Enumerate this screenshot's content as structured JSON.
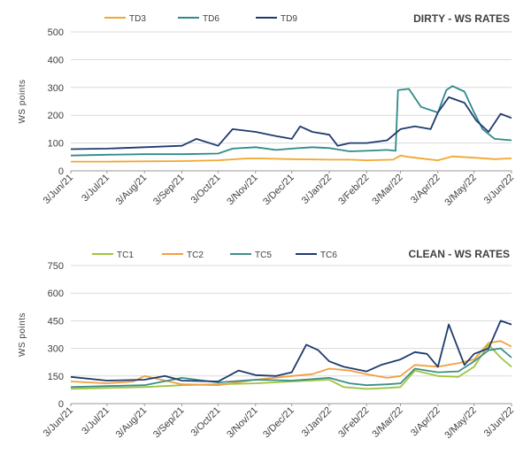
{
  "chart_data": [
    {
      "type": "line",
      "title": "DIRTY - WS RATES",
      "ylabel": "WS points",
      "xlabel": "",
      "ylim": [
        0,
        500
      ],
      "yticks": [
        0,
        100,
        200,
        300,
        400,
        500
      ],
      "xlim": [
        "2021-06-03",
        "2022-06-03"
      ],
      "xtick_labels": [
        "3/Jun/21",
        "3/Jul/21",
        "3/Aug/21",
        "3/Sep/21",
        "3/Oct/21",
        "3/Nov/21",
        "3/Dec/21",
        "3/Jan/22",
        "3/Feb/22",
        "3/Mar/22",
        "3/Apr/22",
        "3/May/22",
        "3/Jun/22"
      ],
      "grid": "horizontal",
      "legend": "top-left",
      "series": [
        {
          "name": "TD3",
          "color": "#f0a830",
          "x": [
            "2021-06-03",
            "2021-07-03",
            "2021-08-03",
            "2021-09-03",
            "2021-10-03",
            "2021-10-25",
            "2021-11-03",
            "2021-12-03",
            "2022-01-03",
            "2022-01-20",
            "2022-02-03",
            "2022-02-25",
            "2022-03-03",
            "2022-03-10",
            "2022-03-25",
            "2022-04-03",
            "2022-04-15",
            "2022-05-03",
            "2022-05-20",
            "2022-06-03"
          ],
          "values": [
            33,
            33,
            34,
            35,
            38,
            44,
            45,
            42,
            40,
            40,
            38,
            40,
            55,
            50,
            42,
            38,
            52,
            47,
            42,
            45
          ]
        },
        {
          "name": "TD6",
          "color": "#2e8b87",
          "x": [
            "2021-06-03",
            "2021-07-03",
            "2021-08-03",
            "2021-09-03",
            "2021-10-03",
            "2021-10-15",
            "2021-11-03",
            "2021-11-20",
            "2021-12-03",
            "2021-12-20",
            "2022-01-03",
            "2022-01-20",
            "2022-02-03",
            "2022-02-20",
            "2022-02-27",
            "2022-03-01",
            "2022-03-10",
            "2022-03-20",
            "2022-04-03",
            "2022-04-10",
            "2022-04-15",
            "2022-04-25",
            "2022-05-03",
            "2022-05-10",
            "2022-05-20",
            "2022-06-03"
          ],
          "values": [
            55,
            58,
            60,
            60,
            62,
            80,
            85,
            75,
            80,
            85,
            82,
            70,
            72,
            75,
            72,
            290,
            295,
            230,
            210,
            290,
            305,
            285,
            210,
            150,
            115,
            110
          ]
        },
        {
          "name": "TD9",
          "color": "#1f3b6e",
          "x": [
            "2021-06-03",
            "2021-07-03",
            "2021-08-03",
            "2021-09-03",
            "2021-09-15",
            "2021-10-03",
            "2021-10-15",
            "2021-11-03",
            "2021-11-20",
            "2021-12-03",
            "2021-12-10",
            "2021-12-20",
            "2022-01-03",
            "2022-01-10",
            "2022-01-20",
            "2022-02-03",
            "2022-02-20",
            "2022-03-03",
            "2022-03-15",
            "2022-03-28",
            "2022-04-03",
            "2022-04-12",
            "2022-04-25",
            "2022-05-05",
            "2022-05-15",
            "2022-05-25",
            "2022-06-03"
          ],
          "values": [
            78,
            80,
            85,
            90,
            115,
            90,
            150,
            140,
            125,
            115,
            160,
            140,
            130,
            90,
            100,
            100,
            110,
            150,
            160,
            150,
            210,
            265,
            245,
            180,
            140,
            205,
            190
          ]
        }
      ]
    },
    {
      "type": "line",
      "title": "CLEAN - WS RATES",
      "ylabel": "WS points",
      "xlabel": "",
      "ylim": [
        0,
        750
      ],
      "yticks": [
        0,
        150,
        300,
        450,
        600,
        750
      ],
      "xlim": [
        "2021-06-03",
        "2022-06-03"
      ],
      "xtick_labels": [
        "3/Jun/21",
        "3/Jul/21",
        "3/Aug/21",
        "3/Sep/21",
        "3/Oct/21",
        "3/Nov/21",
        "3/Dec/21",
        "3/Jan/22",
        "3/Feb/22",
        "3/Mar/22",
        "3/Apr/22",
        "3/May/22",
        "3/Jun/22"
      ],
      "grid": "horizontal",
      "legend": "top-left",
      "series": [
        {
          "name": "TC1",
          "color": "#9dc53f",
          "x": [
            "2021-06-03",
            "2021-07-03",
            "2021-08-03",
            "2021-09-03",
            "2021-10-03",
            "2021-11-03",
            "2021-12-03",
            "2022-01-03",
            "2022-01-15",
            "2022-02-03",
            "2022-02-20",
            "2022-03-03",
            "2022-03-15",
            "2022-04-03",
            "2022-04-20",
            "2022-05-03",
            "2022-05-15",
            "2022-05-25",
            "2022-06-03"
          ],
          "values": [
            80,
            85,
            90,
            100,
            105,
            110,
            120,
            130,
            90,
            80,
            85,
            90,
            180,
            150,
            145,
            200,
            320,
            250,
            200
          ]
        },
        {
          "name": "TC2",
          "color": "#f0a040",
          "x": [
            "2021-06-03",
            "2021-07-03",
            "2021-07-25",
            "2021-08-03",
            "2021-09-03",
            "2021-10-03",
            "2021-11-03",
            "2021-12-03",
            "2021-12-20",
            "2022-01-03",
            "2022-01-20",
            "2022-02-03",
            "2022-02-20",
            "2022-03-03",
            "2022-03-15",
            "2022-04-03",
            "2022-04-20",
            "2022-05-03",
            "2022-05-15",
            "2022-05-25",
            "2022-06-03"
          ],
          "values": [
            120,
            110,
            120,
            150,
            105,
            100,
            130,
            150,
            160,
            190,
            180,
            160,
            140,
            150,
            210,
            200,
            220,
            240,
            330,
            340,
            310
          ]
        },
        {
          "name": "TC5",
          "color": "#3a8f86",
          "x": [
            "2021-06-03",
            "2021-07-03",
            "2021-08-03",
            "2021-09-03",
            "2021-10-03",
            "2021-11-03",
            "2021-12-03",
            "2022-01-03",
            "2022-01-20",
            "2022-02-03",
            "2022-02-20",
            "2022-03-03",
            "2022-03-15",
            "2022-04-03",
            "2022-04-20",
            "2022-05-03",
            "2022-05-15",
            "2022-05-25",
            "2022-06-03"
          ],
          "values": [
            90,
            95,
            100,
            140,
            115,
            130,
            125,
            140,
            110,
            100,
            105,
            110,
            190,
            170,
            175,
            230,
            290,
            300,
            250
          ]
        },
        {
          "name": "TC6",
          "color": "#1f3b6e",
          "x": [
            "2021-06-03",
            "2021-07-03",
            "2021-08-03",
            "2021-08-20",
            "2021-09-03",
            "2021-10-03",
            "2021-10-20",
            "2021-11-03",
            "2021-11-20",
            "2021-12-03",
            "2021-12-15",
            "2021-12-25",
            "2022-01-03",
            "2022-01-15",
            "2022-02-03",
            "2022-02-15",
            "2022-03-03",
            "2022-03-15",
            "2022-03-25",
            "2022-04-03",
            "2022-04-12",
            "2022-04-25",
            "2022-05-03",
            "2022-05-15",
            "2022-05-25",
            "2022-06-03"
          ],
          "values": [
            145,
            125,
            130,
            150,
            125,
            120,
            180,
            155,
            150,
            170,
            320,
            290,
            230,
            200,
            175,
            210,
            240,
            280,
            270,
            200,
            430,
            210,
            270,
            300,
            450,
            430
          ]
        }
      ]
    }
  ]
}
